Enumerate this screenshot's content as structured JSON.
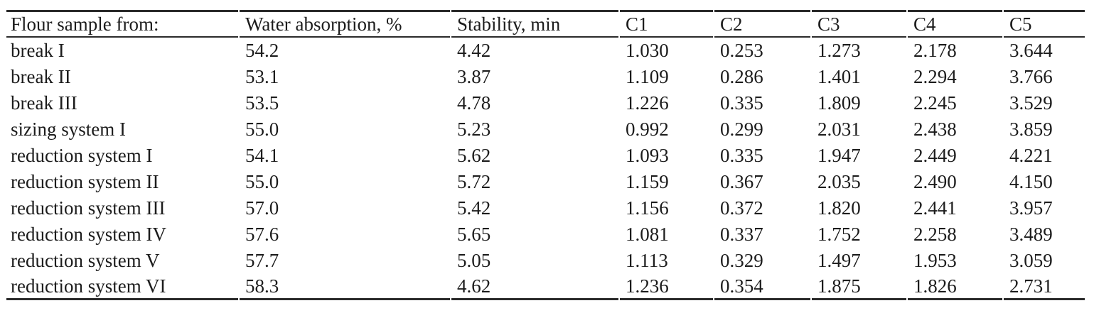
{
  "page": {
    "background_color": "#ffffff",
    "text_color": "#1c1c1c",
    "rule_color": "#2b2b2b"
  },
  "table": {
    "columns": [
      "Flour sample from:",
      "Water absorption, %",
      "Stability, min",
      "C1",
      "C2",
      "C3",
      "C4",
      "C5"
    ],
    "rows": [
      [
        "break I",
        "54.2",
        "4.42",
        "1.030",
        "0.253",
        "1.273",
        "2.178",
        "3.644"
      ],
      [
        "break II",
        "53.1",
        "3.87",
        "1.109",
        "0.286",
        "1.401",
        "2.294",
        "3.766"
      ],
      [
        "break III",
        "53.5",
        "4.78",
        "1.226",
        "0.335",
        "1.809",
        "2.245",
        "3.529"
      ],
      [
        "sizing system I",
        "55.0",
        "5.23",
        "0.992",
        "0.299",
        "2.031",
        "2.438",
        "3.859"
      ],
      [
        "reduction system I",
        "54.1",
        "5.62",
        "1.093",
        "0.335",
        "1.947",
        "2.449",
        "4.221"
      ],
      [
        "reduction system II",
        "55.0",
        "5.72",
        "1.159",
        "0.367",
        "2.035",
        "2.490",
        "4.150"
      ],
      [
        "reduction system III",
        "57.0",
        "5.42",
        "1.156",
        "0.372",
        "1.820",
        "2.441",
        "3.957"
      ],
      [
        "reduction system IV",
        "57.6",
        "5.65",
        "1.081",
        "0.337",
        "1.752",
        "2.258",
        "3.489"
      ],
      [
        "reduction system V",
        "57.7",
        "5.05",
        "1.113",
        "0.329",
        "1.497",
        "1.953",
        "3.059"
      ],
      [
        "reduction system VI",
        "58.3",
        "4.62",
        "1.236",
        "0.354",
        "1.875",
        "1.826",
        "2.731"
      ]
    ]
  }
}
